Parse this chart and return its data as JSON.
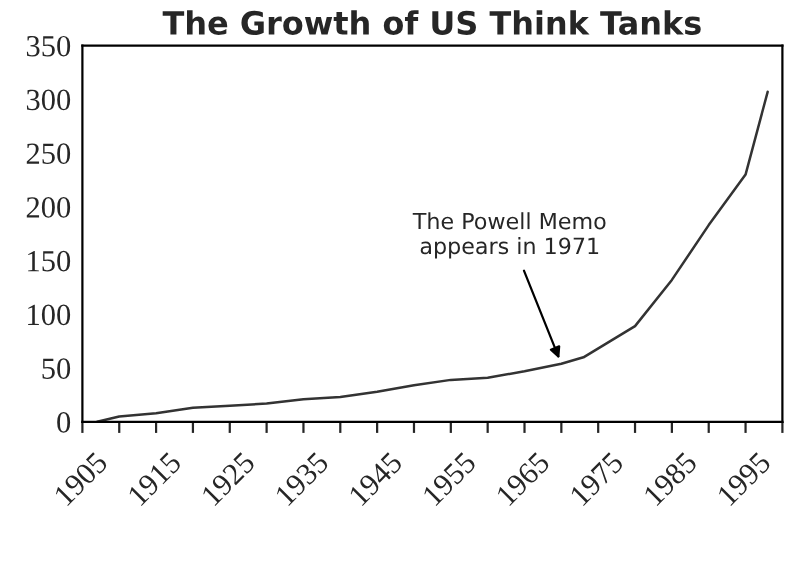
{
  "chart_data": {
    "type": "line",
    "title": "The Growth of US Think Tanks",
    "x": [
      1907,
      1910,
      1915,
      1920,
      1925,
      1930,
      1935,
      1940,
      1945,
      1950,
      1955,
      1960,
      1965,
      1970,
      1973,
      1980,
      1985,
      1990,
      1995,
      1998
    ],
    "series": [
      {
        "color": "#333333",
        "values": [
          0,
          5,
          8,
          13,
          15,
          17,
          21,
          23,
          28,
          34,
          39,
          41,
          47,
          54,
          60,
          89,
          132,
          183,
          230,
          307
        ]
      }
    ],
    "xlim": [
      1905,
      2000
    ],
    "xticks": [
      1905,
      {
        "value": 1910,
        "label": null
      },
      1915,
      {
        "value": 1920,
        "label": null
      },
      1925,
      {
        "value": 1930,
        "label": null
      },
      1935,
      {
        "value": 1940,
        "label": null
      },
      1945,
      {
        "value": 1950,
        "label": null
      },
      1955,
      {
        "value": 1960,
        "label": null
      },
      1965,
      {
        "value": 1970,
        "label": null
      },
      1975,
      {
        "value": 1980,
        "label": null
      },
      1985,
      {
        "value": 1990,
        "label": null
      },
      1995,
      {
        "value": 2000,
        "label": null
      }
    ],
    "ylim": [
      0,
      350
    ],
    "yticks": [
      0,
      50,
      100,
      150,
      200,
      250,
      300,
      350
    ],
    "annotations": [
      {
        "text": "The Powell Memo\nappears in 1971",
        "x": 1970,
        "y": 54
      }
    ],
    "grid": false,
    "legend": false,
    "marker": "none",
    "line_style": "solid"
  }
}
